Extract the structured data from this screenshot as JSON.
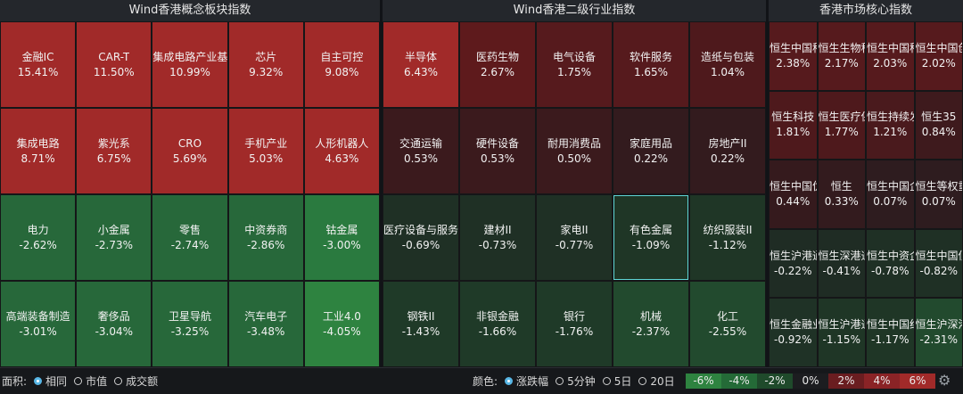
{
  "panels": [
    {
      "title": "Wind香港概念板块指数",
      "tiles": [
        {
          "name": "金融IC",
          "pct": "15.41%",
          "color": "#a12a29"
        },
        {
          "name": "CAR-T",
          "pct": "11.50%",
          "color": "#a12a29"
        },
        {
          "name": "集成电路产业基金",
          "pct": "10.99%",
          "color": "#a12a29"
        },
        {
          "name": "芯片",
          "pct": "9.32%",
          "color": "#a12a29"
        },
        {
          "name": "自主可控",
          "pct": "9.08%",
          "color": "#a12a29"
        },
        {
          "name": "集成电路",
          "pct": "8.71%",
          "color": "#a12a29"
        },
        {
          "name": "紫光系",
          "pct": "6.75%",
          "color": "#a12a29"
        },
        {
          "name": "CRO",
          "pct": "5.69%",
          "color": "#a12a29"
        },
        {
          "name": "手机产业",
          "pct": "5.03%",
          "color": "#a12a29"
        },
        {
          "name": "人形机器人",
          "pct": "4.63%",
          "color": "#a12a29"
        },
        {
          "name": "电力",
          "pct": "-2.62%",
          "color": "#27683a"
        },
        {
          "name": "小金属",
          "pct": "-2.73%",
          "color": "#27683a"
        },
        {
          "name": "零售",
          "pct": "-2.74%",
          "color": "#27683a"
        },
        {
          "name": "中资券商",
          "pct": "-2.86%",
          "color": "#27683a"
        },
        {
          "name": "钴金属",
          "pct": "-3.00%",
          "color": "#2a7a3f"
        },
        {
          "name": "高端装备制造",
          "pct": "-3.01%",
          "color": "#27683a"
        },
        {
          "name": "奢侈品",
          "pct": "-3.04%",
          "color": "#27683a"
        },
        {
          "name": "卫星导航",
          "pct": "-3.25%",
          "color": "#27683a"
        },
        {
          "name": "汽车电子",
          "pct": "-3.48%",
          "color": "#27683a"
        },
        {
          "name": "工业4.0",
          "pct": "-4.05%",
          "color": "#2e8340"
        }
      ]
    },
    {
      "title": "Wind香港二级行业指数",
      "tiles": [
        {
          "name": "半导体",
          "pct": "6.43%",
          "color": "#a12a29"
        },
        {
          "name": "医药生物",
          "pct": "2.67%",
          "color": "#5e1a1c"
        },
        {
          "name": "电气设备",
          "pct": "1.75%",
          "color": "#561a1d"
        },
        {
          "name": "软件服务",
          "pct": "1.65%",
          "color": "#561a1d"
        },
        {
          "name": "造纸与包装",
          "pct": "1.04%",
          "color": "#4e191c"
        },
        {
          "name": "交通运输",
          "pct": "0.53%",
          "color": "#3b1a1d"
        },
        {
          "name": "硬件设备",
          "pct": "0.53%",
          "color": "#3b1a1d"
        },
        {
          "name": "耐用消费品",
          "pct": "0.50%",
          "color": "#3b1a1d"
        },
        {
          "name": "家庭用品",
          "pct": "0.22%",
          "color": "#331b1e"
        },
        {
          "name": "房地产II",
          "pct": "0.22%",
          "color": "#331b1e"
        },
        {
          "name": "医疗设备与服务",
          "pct": "-0.69%",
          "color": "#1f3025"
        },
        {
          "name": "建材II",
          "pct": "-0.73%",
          "color": "#1f3025"
        },
        {
          "name": "家电II",
          "pct": "-0.77%",
          "color": "#1f3025"
        },
        {
          "name": "有色金属",
          "pct": "-1.09%",
          "color": "#1f3626",
          "selected": true
        },
        {
          "name": "纺织服装II",
          "pct": "-1.12%",
          "color": "#1f3626"
        },
        {
          "name": "钢铁II",
          "pct": "-1.43%",
          "color": "#1f3a28"
        },
        {
          "name": "非银金融",
          "pct": "-1.66%",
          "color": "#1f3a28"
        },
        {
          "name": "银行",
          "pct": "-1.76%",
          "color": "#1f3a28"
        },
        {
          "name": "机械",
          "pct": "-2.37%",
          "color": "#224a2e"
        },
        {
          "name": "化工",
          "pct": "-2.55%",
          "color": "#224a2e"
        }
      ]
    },
    {
      "title": "香港市场核心指数",
      "tiles": [
        {
          "name": "恒生中国科技",
          "pct": "2.38%",
          "color": "#561a1d"
        },
        {
          "name": "恒生生物科技",
          "pct": "2.17%",
          "color": "#561a1d"
        },
        {
          "name": "恒生中国科技",
          "pct": "2.03%",
          "color": "#561a1d"
        },
        {
          "name": "恒生中国创新",
          "pct": "2.02%",
          "color": "#561a1d"
        },
        {
          "name": "恒生科技",
          "pct": "1.81%",
          "color": "#4e191c"
        },
        {
          "name": "恒生医疗保健",
          "pct": "1.77%",
          "color": "#4e191c"
        },
        {
          "name": "恒生持续发展",
          "pct": "1.21%",
          "color": "#4a1a1d"
        },
        {
          "name": "恒生35",
          "pct": "0.84%",
          "color": "#3e1a1d"
        },
        {
          "name": "恒生中国优质股",
          "pct": "0.44%",
          "color": "#351a1d"
        },
        {
          "name": "恒生",
          "pct": "0.33%",
          "color": "#331b1e"
        },
        {
          "name": "恒生中国企业",
          "pct": "0.07%",
          "color": "#2e1c1f"
        },
        {
          "name": "恒生等权重",
          "pct": "0.07%",
          "color": "#2e1c1f"
        },
        {
          "name": "恒生沪港通中小",
          "pct": "-0.22%",
          "color": "#1f2c24"
        },
        {
          "name": "恒生深港通AH",
          "pct": "-0.41%",
          "color": "#1f2c24"
        },
        {
          "name": "恒生中资企业",
          "pct": "-0.78%",
          "color": "#1f3025"
        },
        {
          "name": "恒生中国低波",
          "pct": "-0.82%",
          "color": "#1f3025"
        },
        {
          "name": "恒生金融业",
          "pct": "-0.92%",
          "color": "#1f3226"
        },
        {
          "name": "恒生沪港通小型",
          "pct": "-1.15%",
          "color": "#1f3626"
        },
        {
          "name": "恒生中国红筹",
          "pct": "-1.17%",
          "color": "#1f3626"
        },
        {
          "name": "恒生沪深港通内地",
          "pct": "-2.31%",
          "color": "#224a2e"
        }
      ]
    }
  ],
  "bottom": {
    "area_label": "面积:",
    "area_options": [
      {
        "label": "相同",
        "selected": true
      },
      {
        "label": "市值",
        "selected": false
      },
      {
        "label": "成交额",
        "selected": false
      }
    ],
    "color_label": "颜色:",
    "color_options": [
      {
        "label": "涨跌幅",
        "selected": true
      },
      {
        "label": "5分钟",
        "selected": false
      },
      {
        "label": "5日",
        "selected": false
      },
      {
        "label": "20日",
        "selected": false
      }
    ],
    "legend": [
      {
        "label": "-6%",
        "color": "#2e8340"
      },
      {
        "label": "-4%",
        "color": "#246a37"
      },
      {
        "label": "-2%",
        "color": "#1f4a2b"
      },
      {
        "label": "0%",
        "color": "#1c1d20"
      },
      {
        "label": "2%",
        "color": "#6a1d20"
      },
      {
        "label": "4%",
        "color": "#8a2326"
      },
      {
        "label": "6%",
        "color": "#a12a29"
      }
    ],
    "settings_icon": "gear-icon"
  }
}
